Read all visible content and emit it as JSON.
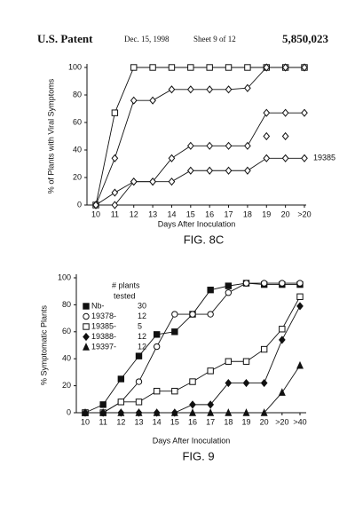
{
  "header": {
    "left": "U.S. Patent",
    "date": "Dec. 15, 1998",
    "sheet": "Sheet 9 of 12",
    "number": "5,850,023"
  },
  "chart_data": [
    {
      "type": "line",
      "caption": "FIG. 8C",
      "x_label": "Days After Inoculation",
      "y_label": "% of Plants with Viral Symptoms",
      "categories": [
        "10",
        "11",
        "12",
        "13",
        "14",
        "15",
        "16",
        "17",
        "18",
        "19",
        "20",
        ">20"
      ],
      "ylim": [
        0,
        100
      ],
      "yticks": [
        0,
        20,
        40,
        60,
        80,
        100
      ],
      "series": [
        {
          "color": "#111111",
          "marker": "square-open",
          "values": [
            0,
            67,
            100,
            100,
            100,
            100,
            100,
            100,
            100,
            100,
            100,
            100
          ]
        },
        {
          "color": "#111111",
          "marker": "diamond-open",
          "values": [
            0,
            34,
            76,
            76,
            84,
            84,
            84,
            84,
            85,
            100,
            100,
            100
          ]
        },
        {
          "color": "#111111",
          "marker": "diamond-open",
          "values": [
            0,
            9,
            17,
            17,
            34,
            43,
            43,
            43,
            43,
            67,
            67,
            67
          ]
        },
        {
          "name": "19385",
          "color": "#111111",
          "marker": "diamond-open",
          "values": [
            0,
            0,
            17,
            17,
            17,
            25,
            25,
            25,
            25,
            34,
            34,
            34
          ]
        },
        {
          "color": "#111111",
          "marker": "diamond-open",
          "line": false,
          "values": [
            null,
            null,
            null,
            null,
            null,
            null,
            null,
            null,
            null,
            50,
            50,
            null
          ]
        }
      ]
    },
    {
      "type": "line",
      "caption": "FIG. 9",
      "x_label": "Days After Inoculation",
      "y_label": "% Symptomatic Plants",
      "legend_title": [
        "# plants",
        "tested"
      ],
      "categories": [
        "10",
        "11",
        "12",
        "13",
        "14",
        "15",
        "16",
        "17",
        "18",
        "19",
        "20",
        ">20",
        ">40"
      ],
      "ylim": [
        0,
        100
      ],
      "yticks": [
        0,
        20,
        40,
        60,
        80,
        100
      ],
      "series": [
        {
          "name": "Nb-",
          "plants": 30,
          "color": "#111111",
          "marker": "square",
          "values": [
            0,
            6,
            25,
            42,
            58,
            60,
            73,
            91,
            94,
            96,
            95,
            95,
            95
          ]
        },
        {
          "name": "19378-",
          "plants": 12,
          "color": "#111111",
          "marker": "circle-open",
          "values": [
            0,
            0,
            8,
            23,
            49,
            73,
            73,
            73,
            89,
            96,
            96,
            96,
            96
          ]
        },
        {
          "name": "19385-",
          "plants": 5,
          "color": "#111111",
          "marker": "square-open",
          "values": [
            0,
            0,
            8,
            8,
            16,
            16,
            23,
            31,
            38,
            38,
            47,
            62,
            86
          ]
        },
        {
          "name": "19388-",
          "plants": 12,
          "color": "#111111",
          "marker": "diamond",
          "values": [
            0,
            0,
            0,
            0,
            0,
            0,
            6,
            6,
            22,
            22,
            22,
            54,
            79
          ]
        },
        {
          "name": "19397-",
          "plants": 12,
          "color": "#111111",
          "marker": "triangle",
          "values": [
            0,
            0,
            0,
            0,
            0,
            0,
            0,
            0,
            0,
            0,
            0,
            15,
            35
          ]
        }
      ]
    }
  ]
}
